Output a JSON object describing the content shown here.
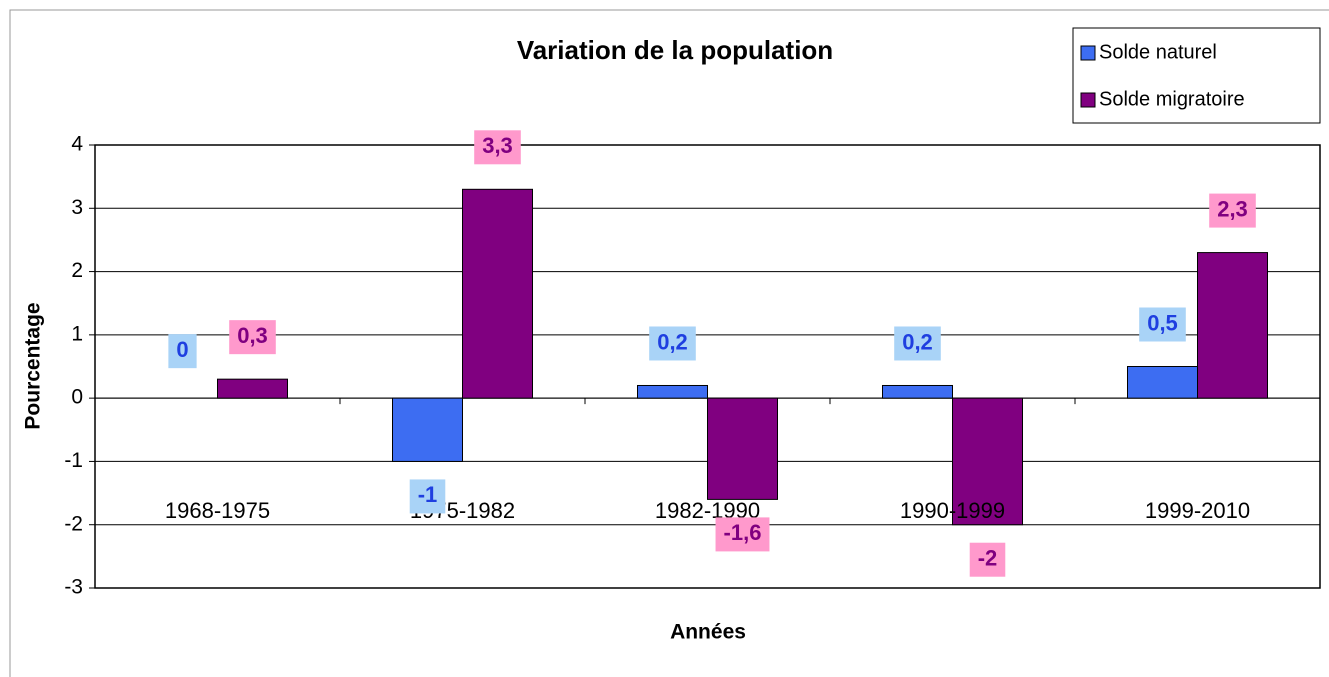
{
  "chart_data": {
    "type": "bar",
    "title": "Variation de la population",
    "x_label": "Années",
    "y_label": "Pourcentage",
    "categories": [
      "1968-1975",
      "1975-1982",
      "1982-1990",
      "1990-1999",
      "1999-2010"
    ],
    "series": [
      {
        "name": "Solde naturel",
        "color": "#3d6df2",
        "label_bg": "#a9d3f7",
        "label_color": "#1f3fe0",
        "values": [
          0,
          -1,
          0.2,
          0.2,
          0.5
        ],
        "value_labels": [
          "0",
          "-1",
          "0,2",
          "0,2",
          "0,5"
        ]
      },
      {
        "name": "Solde migratoire",
        "color": "#800080",
        "label_bg": "#ff99cc",
        "label_color": "#800080",
        "values": [
          0.3,
          3.3,
          -1.6,
          -2,
          2.3
        ],
        "value_labels": [
          "0,3",
          "3,3",
          "-1,6",
          "-2",
          "2,3"
        ]
      }
    ],
    "ylim": [
      -3,
      4
    ],
    "yticks": [
      -3,
      -2,
      -1,
      0,
      1,
      2,
      3,
      4
    ],
    "grid": true,
    "legend": "top-right"
  }
}
